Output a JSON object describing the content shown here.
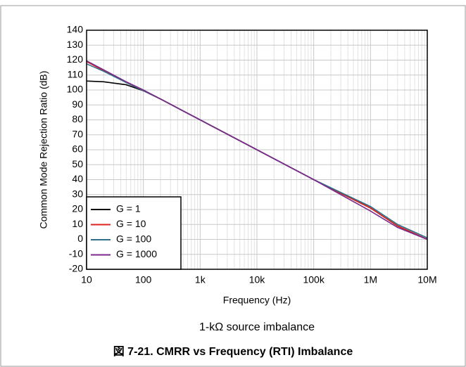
{
  "chart_data": {
    "type": "line",
    "caption": "1-kΩ source imbalance",
    "title": "図 7-21. CMRR vs Frequency (RTI) Imbalance",
    "x_label": "Frequency (Hz)",
    "y_label": "Common Mode Rejection Ratio (dB)",
    "x_log": true,
    "grid": true,
    "minor_grid": true,
    "legend": "lower left",
    "x": [
      10,
      20,
      50,
      100,
      200,
      500,
      1000,
      10000,
      100000,
      1000000,
      3000000,
      10000000
    ],
    "series": [
      {
        "name": "G = 1",
        "color": "#000000",
        "values": [
          106,
          105.5,
          103.5,
          99.5,
          94,
          86,
          80,
          60,
          40,
          21,
          9,
          0
        ]
      },
      {
        "name": "G = 10",
        "color": "#e0201b",
        "values": [
          119,
          113,
          105,
          99.5,
          94,
          86,
          80,
          60,
          40,
          21,
          9,
          0
        ]
      },
      {
        "name": "G = 100",
        "color": "#2f6f8a",
        "values": [
          117.5,
          112.5,
          105,
          99.5,
          94,
          86,
          80,
          60,
          40,
          22,
          10,
          1
        ]
      },
      {
        "name": "G = 1000",
        "color": "#7a2a8c",
        "values": [
          119.5,
          113.5,
          105.5,
          100,
          94,
          86,
          80,
          60,
          40,
          19,
          8,
          0
        ]
      }
    ],
    "xlim": [
      10,
      10000000
    ],
    "xticks": [
      10,
      100,
      {
        "value": 1000,
        "label": "1k"
      },
      {
        "value": 10000,
        "label": "10k"
      },
      {
        "value": 100000,
        "label": "100k"
      },
      {
        "value": 1000000,
        "label": "1M"
      },
      {
        "value": 10000000,
        "label": "10M"
      }
    ],
    "ylim": [
      -20,
      140
    ],
    "yticks": [
      -20,
      -10,
      0,
      10,
      20,
      30,
      40,
      50,
      60,
      70,
      80,
      90,
      100,
      110,
      120,
      130,
      140
    ]
  }
}
